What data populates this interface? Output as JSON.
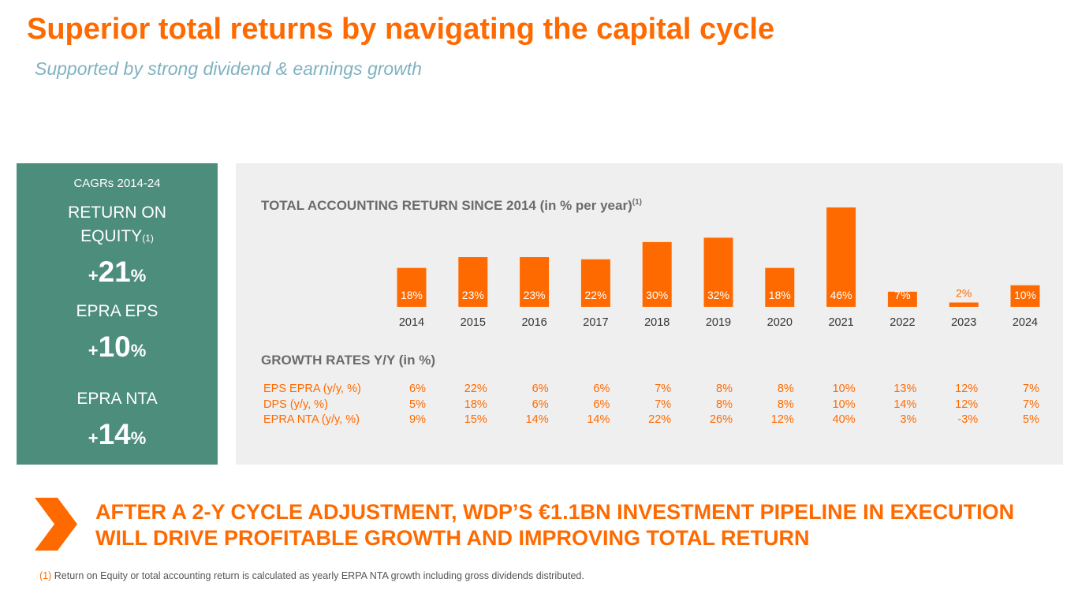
{
  "title": "Superior total returns by navigating the capital cycle",
  "subtitle": "Supported by strong dividend & earnings growth",
  "kpi_panel": {
    "heading": "CAGRs 2014-24",
    "items": [
      {
        "label_line1": "RETURN ON",
        "label_line2": "EQUITY",
        "sup": "(1)",
        "plus": "+",
        "value": "21",
        "unit": "%"
      },
      {
        "label_line1": "EPRA EPS",
        "plus": "+",
        "value": "10",
        "unit": "%"
      },
      {
        "label_line1": "EPRA NTA",
        "plus": "+",
        "value": "14",
        "unit": "%"
      }
    ]
  },
  "chart_title": "TOTAL ACCOUNTING RETURN SINCE 2014 (in % per year)",
  "chart_title_sup": "(1)",
  "growth_title": "GROWTH RATES Y/Y (in %)",
  "colors": {
    "accent": "#ff6a00",
    "panel_green": "#4d8d7c",
    "panel_grey": "#efefef",
    "text_grey": "#6b6b6b",
    "subtitle": "#7fb2c0"
  },
  "chart_data": {
    "type": "bar",
    "categories": [
      "2014",
      "2015",
      "2016",
      "2017",
      "2018",
      "2019",
      "2020",
      "2021",
      "2022",
      "2023",
      "2024"
    ],
    "values": [
      18,
      23,
      23,
      22,
      30,
      32,
      18,
      46,
      7,
      2,
      10
    ],
    "value_labels": [
      "18%",
      "23%",
      "23%",
      "22%",
      "30%",
      "32%",
      "18%",
      "46%",
      "7%",
      "2%",
      "10%"
    ],
    "ylim": [
      0,
      46
    ],
    "title": "TOTAL ACCOUNTING RETURN SINCE 2014 (in % per year)",
    "xlabel": "",
    "ylabel": "",
    "grid": false
  },
  "growth_table": {
    "rows": [
      {
        "label": "EPS EPRA (y/y, %)",
        "values": [
          "6%",
          "22%",
          "6%",
          "6%",
          "7%",
          "8%",
          "8%",
          "10%",
          "13%",
          "12%",
          "7%"
        ]
      },
      {
        "label": "DPS (y/y, %)",
        "values": [
          "5%",
          "18%",
          "6%",
          "6%",
          "7%",
          "8%",
          "8%",
          "10%",
          "14%",
          "12%",
          "7%"
        ]
      },
      {
        "label": "EPRA NTA (y/y, %)",
        "values": [
          "9%",
          "15%",
          "14%",
          "14%",
          "22%",
          "26%",
          "12%",
          "40%",
          "3%",
          "-3%",
          "5%"
        ]
      }
    ]
  },
  "callout": {
    "line1": "AFTER A 2-Y CYCLE ADJUSTMENT, WDP’S €1.1BN INVESTMENT PIPELINE IN EXECUTION",
    "line2": "WILL DRIVE PROFITABLE GROWTH AND IMPROVING TOTAL RETURN"
  },
  "footnote": {
    "ref": "(1)",
    "text": " Return on Equity or total accounting return is calculated as yearly ERPA NTA growth including gross dividends distributed."
  }
}
